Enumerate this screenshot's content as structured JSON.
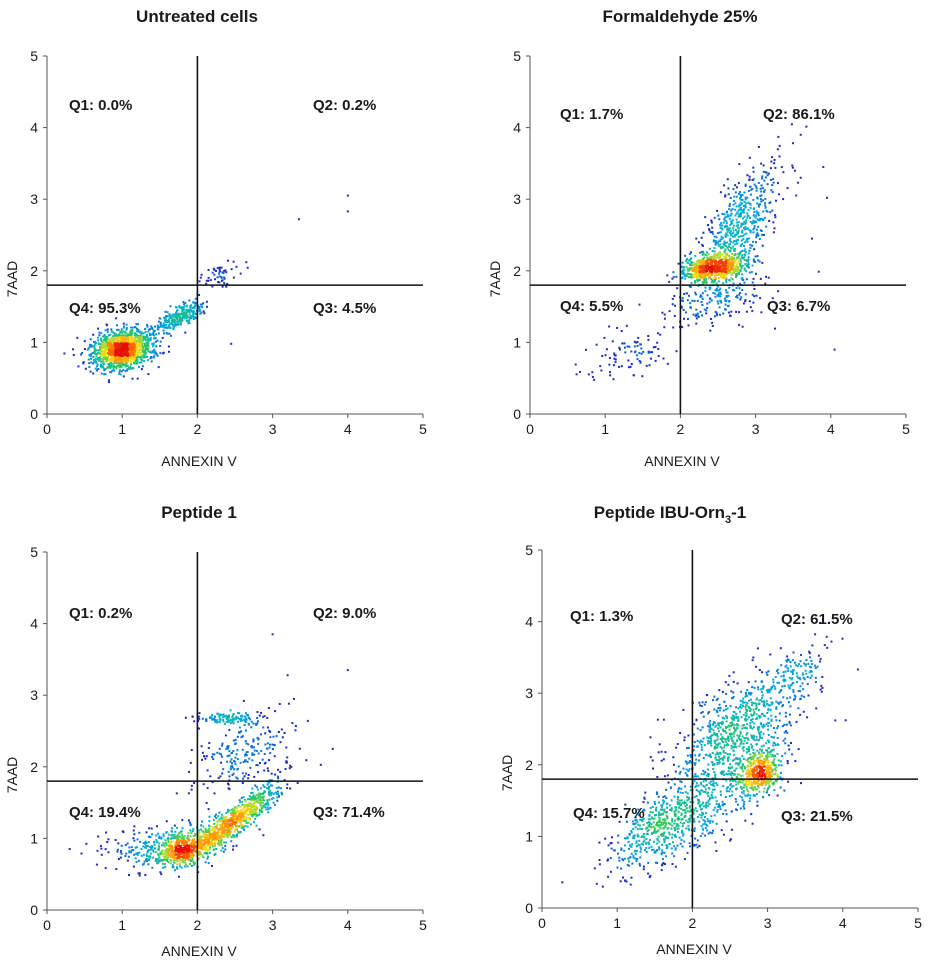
{
  "chart_data": [
    {
      "type": "scatter",
      "title": "Untreated cells",
      "title_sub": "",
      "xlabel": "ANNEXIN V",
      "ylabel": "7AAD",
      "xlim": [
        0,
        5
      ],
      "ylim": [
        0,
        5
      ],
      "xticks": [
        "0",
        "1",
        "2",
        "3",
        "4",
        "5"
      ],
      "yticks": [
        "0",
        "1",
        "2",
        "3",
        "4",
        "5"
      ],
      "gate": {
        "x": 2.0,
        "y": 1.8
      },
      "quadrants": [
        {
          "id": "Q1",
          "text": "Q1: 0.0%",
          "value": 0.0
        },
        {
          "id": "Q2",
          "text": "Q2: 0.2%",
          "value": 0.2
        },
        {
          "id": "Q3",
          "text": "Q3: 4.5%",
          "value": 4.5
        },
        {
          "id": "Q4",
          "text": "Q4: 95.3%",
          "value": 95.3
        }
      ],
      "clusters": [
        {
          "x": 1.0,
          "y": 0.9,
          "sx": 0.2,
          "sy": 0.14,
          "rho": 0.2,
          "weight": 0.8
        },
        {
          "x": 1.75,
          "y": 1.35,
          "sx": 0.17,
          "sy": 0.12,
          "rho": 0.75,
          "weight": 0.17
        },
        {
          "x": 2.3,
          "y": 1.95,
          "sx": 0.15,
          "sy": 0.12,
          "rho": 0.5,
          "weight": 0.03
        }
      ],
      "outliers": [
        [
          4.0,
          3.05
        ],
        [
          4.0,
          2.83
        ],
        [
          3.35,
          2.72
        ],
        [
          2.65,
          2.12
        ],
        [
          2.45,
          0.98
        ]
      ]
    },
    {
      "type": "scatter",
      "title": "Formaldehyde 25%",
      "title_sub": "",
      "xlabel": "ANNEXIN V",
      "ylabel": "7AAD",
      "xlim": [
        0,
        5
      ],
      "ylim": [
        0,
        5
      ],
      "xticks": [
        "0",
        "1",
        "2",
        "3",
        "4",
        "5"
      ],
      "yticks": [
        "0",
        "1",
        "2",
        "3",
        "4",
        "5"
      ],
      "gate": {
        "x": 2.0,
        "y": 1.8
      },
      "quadrants": [
        {
          "id": "Q1",
          "text": "Q1: 1.7%",
          "value": 1.7
        },
        {
          "id": "Q2",
          "text": "Q2: 86.1%",
          "value": 86.1
        },
        {
          "id": "Q3",
          "text": "Q3: 6.7%",
          "value": 6.7
        },
        {
          "id": "Q4",
          "text": "Q4: 5.5%",
          "value": 5.5
        }
      ],
      "clusters": [
        {
          "x": 2.45,
          "y": 2.05,
          "sx": 0.22,
          "sy": 0.1,
          "rho": 0.3,
          "weight": 0.45
        },
        {
          "x": 2.75,
          "y": 2.55,
          "sx": 0.25,
          "sy": 0.35,
          "rho": 0.55,
          "weight": 0.3
        },
        {
          "x": 2.5,
          "y": 1.6,
          "sx": 0.35,
          "sy": 0.2,
          "rho": 0.3,
          "weight": 0.13
        },
        {
          "x": 1.35,
          "y": 0.85,
          "sx": 0.3,
          "sy": 0.2,
          "rho": 0.3,
          "weight": 0.06
        },
        {
          "x": 3.1,
          "y": 3.2,
          "sx": 0.3,
          "sy": 0.35,
          "rho": 0.5,
          "weight": 0.06
        }
      ],
      "outliers": [
        [
          3.6,
          3.9
        ],
        [
          3.9,
          3.45
        ],
        [
          3.95,
          3.02
        ],
        [
          3.75,
          2.45
        ],
        [
          4.05,
          0.9
        ]
      ]
    },
    {
      "type": "scatter",
      "title": "Peptide 1",
      "title_sub": "",
      "xlabel": "ANNEXIN V",
      "ylabel": "7AAD",
      "xlim": [
        0,
        5
      ],
      "ylim": [
        0,
        5
      ],
      "xticks": [
        "0",
        "1",
        "2",
        "3",
        "4",
        "5"
      ],
      "yticks": [
        "0",
        "1",
        "2",
        "3",
        "4",
        "5"
      ],
      "gate": {
        "x": 2.0,
        "y": 1.8
      },
      "quadrants": [
        {
          "id": "Q1",
          "text": "Q1: 0.2%",
          "value": 0.2
        },
        {
          "id": "Q2",
          "text": "Q2: 9.0%",
          "value": 9.0
        },
        {
          "id": "Q3",
          "text": "Q3: 71.4%",
          "value": 71.4
        },
        {
          "id": "Q4",
          "text": "Q4: 19.4%",
          "value": 19.4
        }
      ],
      "clusters": [
        {
          "x": 2.5,
          "y": 1.25,
          "sx": 0.3,
          "sy": 0.25,
          "rho": 0.9,
          "weight": 0.42
        },
        {
          "x": 1.8,
          "y": 0.85,
          "sx": 0.22,
          "sy": 0.12,
          "rho": 0.3,
          "weight": 0.3
        },
        {
          "x": 2.4,
          "y": 2.68,
          "sx": 0.22,
          "sy": 0.04,
          "rho": 0.0,
          "weight": 0.06
        },
        {
          "x": 2.6,
          "y": 2.2,
          "sx": 0.35,
          "sy": 0.3,
          "rho": 0.4,
          "weight": 0.12
        },
        {
          "x": 1.5,
          "y": 0.9,
          "sx": 0.4,
          "sy": 0.15,
          "rho": 0.2,
          "weight": 0.1
        }
      ],
      "outliers": [
        [
          3.0,
          3.85
        ],
        [
          4.0,
          3.35
        ],
        [
          3.2,
          3.28
        ],
        [
          3.8,
          2.25
        ],
        [
          0.8,
          0.95
        ],
        [
          0.78,
          0.85
        ]
      ]
    },
    {
      "type": "scatter",
      "title": "Peptide IBU-Orn",
      "title_sub": "3",
      "title_suffix": "-1",
      "xlabel": "ANNEXIN V",
      "ylabel": "7AAD",
      "xlim": [
        0,
        5
      ],
      "ylim": [
        0,
        5
      ],
      "xticks": [
        "0",
        "1",
        "2",
        "3",
        "4",
        "5"
      ],
      "yticks": [
        "0",
        "1",
        "2",
        "3",
        "4",
        "5"
      ],
      "gate": {
        "x": 2.0,
        "y": 1.8
      },
      "quadrants": [
        {
          "id": "Q1",
          "text": "Q1: 1.3%",
          "value": 1.3
        },
        {
          "id": "Q2",
          "text": "Q2: 61.5%",
          "value": 61.5
        },
        {
          "id": "Q3",
          "text": "Q3: 21.5%",
          "value": 21.5
        },
        {
          "id": "Q4",
          "text": "Q4: 15.7%",
          "value": 15.7
        }
      ],
      "clusters": [
        {
          "x": 2.9,
          "y": 1.9,
          "sx": 0.15,
          "sy": 0.17,
          "rho": 0.3,
          "weight": 0.2
        },
        {
          "x": 2.6,
          "y": 2.5,
          "sx": 0.45,
          "sy": 0.4,
          "rho": 0.6,
          "weight": 0.35
        },
        {
          "x": 1.6,
          "y": 1.1,
          "sx": 0.35,
          "sy": 0.3,
          "rho": 0.6,
          "weight": 0.25
        },
        {
          "x": 2.3,
          "y": 1.6,
          "sx": 0.4,
          "sy": 0.35,
          "rho": 0.5,
          "weight": 0.15
        },
        {
          "x": 3.4,
          "y": 3.3,
          "sx": 0.2,
          "sy": 0.2,
          "rho": 0.5,
          "weight": 0.05
        }
      ],
      "outliers": [
        [
          3.85,
          3.72
        ],
        [
          3.9,
          2.62
        ],
        [
          1.05,
          0.55
        ]
      ]
    }
  ]
}
